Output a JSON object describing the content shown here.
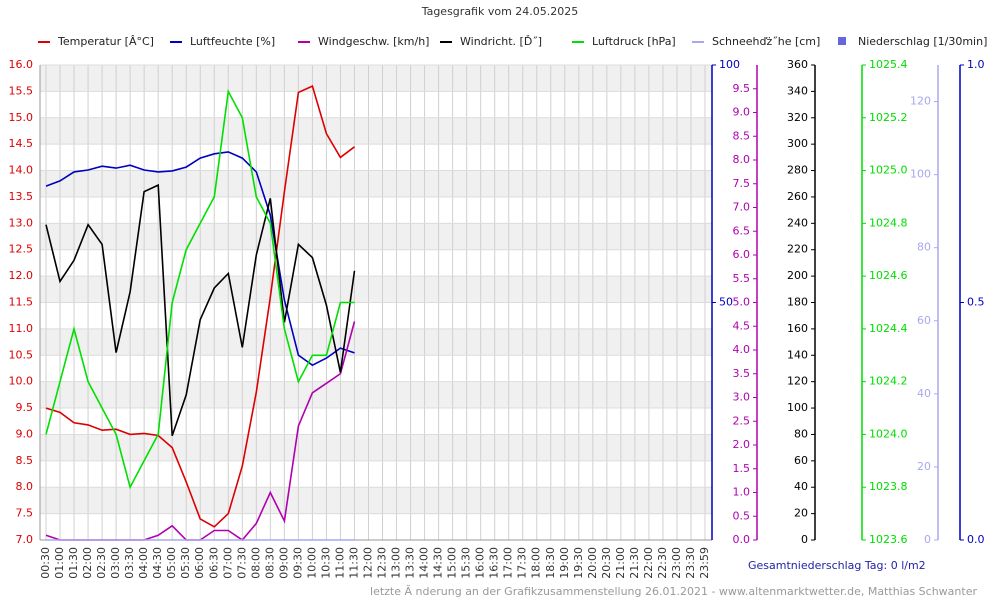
{
  "chart_data": {
    "type": "line",
    "title": "Tagesgrafik vom 24.05.2025",
    "categories": [
      "00:30",
      "01:00",
      "01:30",
      "02:00",
      "02:30",
      "03:00",
      "03:30",
      "04:00",
      "04:30",
      "05:00",
      "05:30",
      "06:00",
      "06:30",
      "07:00",
      "07:30",
      "08:00",
      "08:30",
      "09:00",
      "09:30",
      "10:00",
      "10:30",
      "11:00",
      "11:30",
      "12:00",
      "12:30",
      "13:00",
      "13:30",
      "14:00",
      "14:30",
      "15:00",
      "15:30",
      "16:00",
      "16:30",
      "17:00",
      "17:30",
      "18:00",
      "18:30",
      "19:00",
      "19:30",
      "20:00",
      "20:30",
      "21:00",
      "21:30",
      "22:00",
      "22:30",
      "23:00",
      "23:30",
      "23:59"
    ],
    "ylim": [
      7,
      16
    ],
    "yticks": [
      {
        "value": 7,
        "label": "7.0"
      },
      7.5,
      {
        "value": 8,
        "label": "8.0"
      },
      8.5,
      {
        "value": 9,
        "label": "9.0"
      },
      9.5,
      {
        "value": 10,
        "label": "10.0"
      },
      10.5,
      {
        "value": 11,
        "label": "11.0"
      },
      11.5,
      {
        "value": 12,
        "label": "12.0"
      },
      12.5,
      {
        "value": 13,
        "label": "13.0"
      },
      13.5,
      {
        "value": 14,
        "label": "14.0"
      },
      14.5,
      {
        "value": 15,
        "label": "15.0"
      },
      15.5,
      {
        "value": 16,
        "label": "16.0"
      }
    ],
    "y2lim": [
      0,
      100
    ],
    "y2ticks": [
      50,
      100
    ],
    "y3lim": [
      0,
      10
    ],
    "y3ticks": [
      {
        "value": 0,
        "label": "0.0"
      },
      0.5,
      {
        "value": 1,
        "label": "1.0"
      },
      1.5,
      {
        "value": 2,
        "label": "2.0"
      },
      2.5,
      {
        "value": 3,
        "label": "3.0"
      },
      3.5,
      {
        "value": 4,
        "label": "4.0"
      },
      4.5,
      {
        "value": 5,
        "label": "5.0"
      },
      5.5,
      {
        "value": 6,
        "label": "6.0"
      },
      6.5,
      {
        "value": 7,
        "label": "7.0"
      },
      7.5,
      {
        "value": 8,
        "label": "8.0"
      },
      8.5,
      {
        "value": 9,
        "label": "9.0"
      },
      9.5
    ],
    "y4lim": [
      0,
      360
    ],
    "y4ticks": [
      0,
      20,
      40,
      60,
      80,
      100,
      120,
      140,
      160,
      180,
      200,
      220,
      240,
      260,
      280,
      300,
      320,
      340,
      360
    ],
    "y5lim": [
      1023.6,
      1025.4
    ],
    "y5ticks": [
      1023.6,
      1023.8,
      {
        "value": 1024.0,
        "label": "1024.0"
      },
      1024.2,
      1024.4,
      1024.6,
      1024.8,
      {
        "value": 1025.0,
        "label": "1025.0"
      },
      1025.2,
      1025.4
    ],
    "y6lim": [
      0,
      130
    ],
    "y6ticks": [
      0,
      20,
      40,
      60,
      80,
      100,
      120
    ],
    "y7lim": [
      0,
      1
    ],
    "y7ticks": [
      {
        "value": 0,
        "label": "0.0"
      },
      0.5,
      {
        "value": 1,
        "label": "1.0"
      }
    ],
    "grid": true,
    "series": [
      {
        "name": "Temperatur [Â°C]",
        "color": "#dd0000",
        "axis": "y",
        "values": [
          9.5,
          9.42,
          9.22,
          9.18,
          9.08,
          9.1,
          9.0,
          9.02,
          8.98,
          8.75,
          8.1,
          7.4,
          7.25,
          7.5,
          8.4,
          9.8,
          11.6,
          13.6,
          15.48,
          15.6,
          14.7,
          14.25,
          14.45,
          null,
          null,
          null,
          null,
          null,
          null,
          null,
          null,
          null,
          null,
          null,
          null,
          null,
          null,
          null,
          null,
          null,
          null,
          null,
          null,
          null,
          null,
          null,
          null,
          null
        ]
      },
      {
        "name": "Luftfeuchte [%]",
        "color": "#0000c0",
        "axis": "y2",
        "values": [
          74.5,
          75.6,
          77.5,
          77.9,
          78.7,
          78.3,
          78.9,
          77.9,
          77.5,
          77.7,
          78.5,
          80.4,
          81.3,
          81.7,
          80.4,
          77.5,
          68.4,
          50.5,
          38.9,
          36.8,
          38.3,
          40.4,
          39.4,
          null,
          null,
          null,
          null,
          null,
          null,
          null,
          null,
          null,
          null,
          null,
          null,
          null,
          null,
          null,
          null,
          null,
          null,
          null,
          null,
          null,
          null,
          null,
          null,
          null
        ]
      },
      {
        "name": "Windgeschw. [km/h]",
        "color": "#b000b0",
        "axis": "y3",
        "values": [
          0.1,
          0,
          0,
          0,
          0,
          0,
          0,
          0,
          0.1,
          0.3,
          0,
          0,
          0.2,
          0.2,
          0,
          0.35,
          1.0,
          0.4,
          2.4,
          3.1,
          3.3,
          3.5,
          4.6,
          null,
          null,
          null,
          null,
          null,
          null,
          null,
          null,
          null,
          null,
          null,
          null,
          null,
          null,
          null,
          null,
          null,
          null,
          null,
          null,
          null,
          null,
          null,
          null,
          null
        ]
      },
      {
        "name": "Windricht. [Ď˝]",
        "color": "#000000",
        "axis": "y4",
        "values": [
          239,
          196,
          212,
          239,
          224,
          142,
          188,
          264,
          269,
          79,
          110,
          167,
          191,
          202,
          146,
          216,
          259,
          165,
          224,
          214,
          178,
          127,
          204,
          null,
          null,
          null,
          null,
          null,
          null,
          null,
          null,
          null,
          null,
          null,
          null,
          null,
          null,
          null,
          null,
          null,
          null,
          null,
          null,
          null,
          null,
          null,
          null,
          null
        ]
      },
      {
        "name": "Luftdruck [hPa]",
        "color": "#00e000",
        "axis": "y5",
        "values": [
          1024.0,
          1024.2,
          1024.4,
          1024.2,
          1024.1,
          1024.0,
          1023.8,
          1023.9,
          1024.0,
          1024.5,
          1024.7,
          1024.8,
          1024.9,
          1025.3,
          1025.2,
          1024.9,
          1024.8,
          1024.4,
          1024.2,
          1024.3,
          1024.3,
          1024.5,
          1024.5,
          null,
          null,
          null,
          null,
          null,
          null,
          null,
          null,
          null,
          null,
          null,
          null,
          null,
          null,
          null,
          null,
          null,
          null,
          null,
          null,
          null,
          null,
          null,
          null,
          null
        ]
      },
      {
        "name": "Schneehďż˝he [cm]",
        "color": "#a8a8f0",
        "axis": "y6",
        "values": [
          0,
          0,
          0,
          0,
          0,
          0,
          0,
          0,
          0,
          0,
          0,
          0,
          0,
          0,
          0,
          0,
          0,
          0,
          0,
          0,
          0,
          0,
          0,
          null,
          null,
          null,
          null,
          null,
          null,
          null,
          null,
          null,
          null,
          null,
          null,
          null,
          null,
          null,
          null,
          null,
          null,
          null,
          null,
          null,
          null,
          null,
          null,
          null
        ]
      },
      {
        "name": "Niederschlag [1/30min]",
        "color": "#6666dd",
        "axis": "y7",
        "values": [
          null,
          null,
          null,
          null,
          null,
          null,
          null,
          null,
          null,
          null,
          null,
          null,
          null,
          null,
          null,
          null,
          null,
          null,
          null,
          null,
          null,
          null,
          null,
          null,
          null,
          null,
          null,
          null,
          null,
          null,
          null,
          null,
          null,
          null,
          null,
          null,
          null,
          null,
          null,
          null,
          null,
          null,
          null,
          null,
          null,
          null,
          null,
          null
        ]
      }
    ],
    "total_label": "Gesamtniederschlag Tag: 0 l/m2",
    "footer": "letzte Ă nderung an der Grafikzusammenstellung 26.01.2021 - www.altenmarktwetter.de, Matthias Schwanter"
  }
}
